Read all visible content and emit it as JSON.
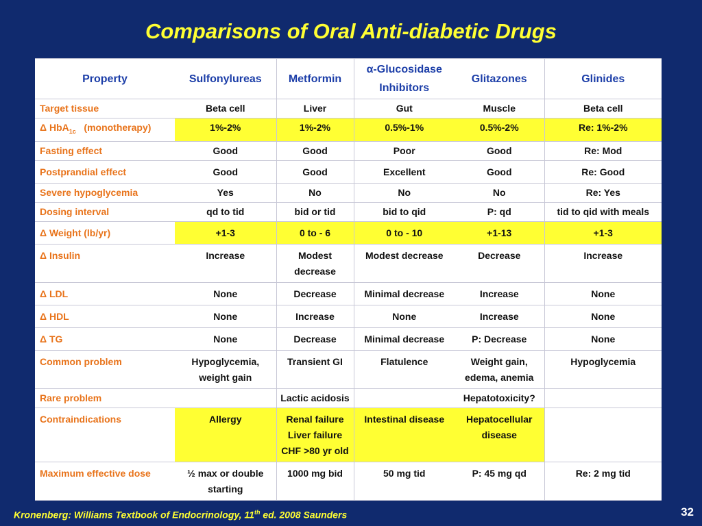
{
  "title": "Comparisons of  Oral  Anti-diabetic  Drugs",
  "headers": [
    "Property",
    "Sulfonylureas",
    "Metformin",
    "α-Glucosidase Inhibitors",
    "Glitazones",
    "Glinides"
  ],
  "header_alpha_line1": "α-Glucosidase",
  "header_alpha_line2": "Inhibitors",
  "rows": [
    {
      "label": "Target tissue",
      "cells": [
        "Beta cell",
        "Liver",
        "Gut",
        "Muscle",
        "Beta cell"
      ]
    },
    {
      "label_prefix": "Δ HbA",
      "label_sub": "1c",
      "label_suffix": "   (monotherapy)",
      "cells": [
        "1%-2%",
        "1%-2%",
        "0.5%-1%",
        "0.5%-2%",
        "Re: 1%-2%"
      ]
    },
    {
      "label": "Fasting effect",
      "cells": [
        "Good",
        "Good",
        "Poor",
        "Good",
        "Re: Mod"
      ]
    },
    {
      "label": "Postprandial effect",
      "cells": [
        "Good",
        "Good",
        "Excellent",
        "Good",
        "Re: Good"
      ]
    },
    {
      "label": "Severe hypoglycemia",
      "cells": [
        "Yes",
        "No",
        "No",
        "No",
        "Re: Yes"
      ]
    },
    {
      "label": "Dosing interval",
      "cells": [
        "qd to tid",
        "bid or tid",
        "bid to qid",
        "P: qd",
        "tid to qid with meals"
      ]
    },
    {
      "label": "Δ Weight (lb/yr)",
      "cells": [
        "+1-3",
        "0 to - 6",
        "0 to - 10",
        "+1-13",
        "+1-3"
      ]
    },
    {
      "label": "Δ Insulin",
      "cells": [
        "Increase",
        "Modest decrease",
        "Modest decrease",
        "Decrease",
        "Increase"
      ]
    },
    {
      "label": "Δ LDL",
      "cells": [
        "None",
        "Decrease",
        "Minimal decrease",
        "Increase",
        "None"
      ]
    },
    {
      "label": "Δ HDL",
      "cells": [
        "None",
        "Increase",
        "None",
        "Increase",
        "None"
      ]
    },
    {
      "label": "Δ TG",
      "cells": [
        "None",
        "Decrease",
        "Minimal decrease",
        "P: Decrease",
        "None"
      ]
    },
    {
      "label": "Common problem",
      "cells": [
        "Hypoglycemia, weight gain",
        "Transient GI",
        "Flatulence",
        "Weight gain, edema, anemia",
        "Hypoglycemia"
      ]
    },
    {
      "label": "Rare problem",
      "cells": [
        "",
        "Lactic acidosis",
        "",
        "Hepatotoxicity?",
        ""
      ]
    },
    {
      "label": "Contraindications",
      "cells": [
        "Allergy",
        "Renal failure Liver failure CHF >80 yr old",
        "Intestinal disease",
        "Hepatocellular disease",
        ""
      ]
    },
    {
      "label": "Maximum effective dose",
      "cells": [
        "½ max or double starting",
        "1000 mg bid",
        "50 mg tid",
        "P: 45 mg qd",
        "Re: 2 mg tid"
      ]
    }
  ],
  "footer_prefix": "Kronenberg: Williams Textbook of Endocrinology, 11",
  "footer_sup": "th",
  "footer_suffix": " ed. 2008 Saunders",
  "page_number": "32",
  "colors": {
    "background": "#102a6e",
    "title": "#ffff33",
    "highlight": "#ffff33",
    "property_label": "#e8731a",
    "header_text": "#1c3ea8"
  }
}
